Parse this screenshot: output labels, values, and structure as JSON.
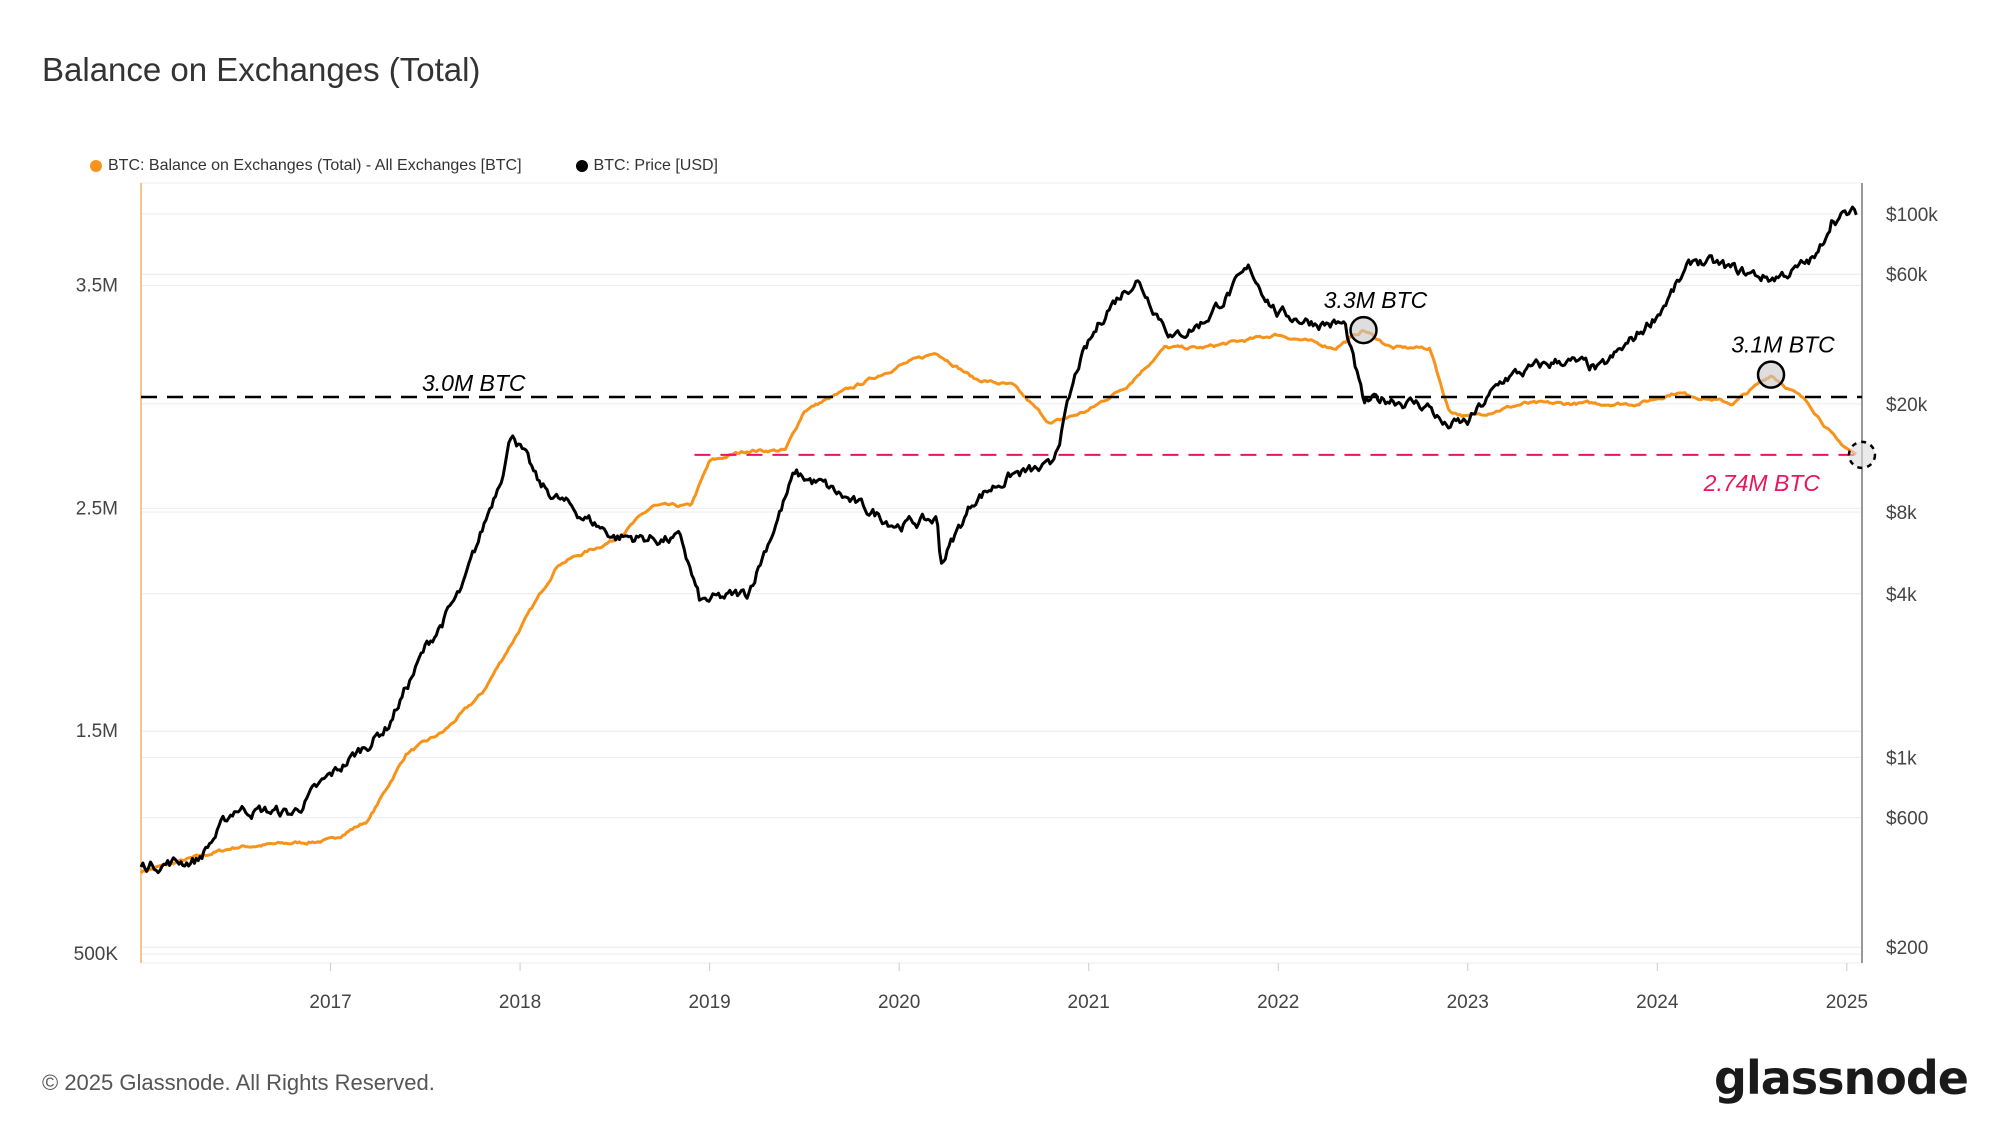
{
  "title": "Balance on Exchanges (Total)",
  "footer": "© 2025 Glassnode. All Rights Reserved.",
  "logo": "glassnode",
  "colors": {
    "balance": "#f7931a",
    "price": "#000000",
    "support": "#e8175d",
    "grid": "#ececec"
  },
  "chart_data": {
    "type": "line",
    "title": "Balance on Exchanges (Total)",
    "legend_position": "top-left",
    "grid": true,
    "x_ticks": [
      "2017",
      "2018",
      "2019",
      "2020",
      "2021",
      "2022",
      "2023",
      "2024",
      "2025"
    ],
    "xlim": [
      2016.0,
      2025.08
    ],
    "y_left": {
      "ticks": [
        "500K",
        "1.5M",
        "2.5M",
        "3.5M"
      ],
      "tick_values": [
        0.5,
        1.5,
        2.5,
        3.5
      ],
      "range": [
        0.46,
        3.96
      ],
      "unit": "M BTC"
    },
    "y_right": {
      "ticks": [
        "$200",
        "$600",
        "$1k",
        "$4k",
        "$8k",
        "$20k",
        "$60k",
        "$100k"
      ],
      "tick_values": [
        200,
        600,
        1000,
        4000,
        8000,
        20000,
        60000,
        100000
      ],
      "scale": "log",
      "range": [
        175,
        130000
      ]
    },
    "series": [
      {
        "name": "BTC: Balance on Exchanges (Total) - All Exchanges [BTC]",
        "axis": "left",
        "color": "#f7931a",
        "x": [
          2016.0,
          2016.5,
          2017.0,
          2017.2,
          2017.4,
          2017.6,
          2017.8,
          2018.0,
          2018.2,
          2018.5,
          2018.7,
          2018.9,
          2019.0,
          2019.2,
          2019.4,
          2019.5,
          2019.7,
          2020.0,
          2020.2,
          2020.4,
          2020.6,
          2020.8,
          2021.0,
          2021.2,
          2021.4,
          2021.6,
          2021.8,
          2022.0,
          2022.3,
          2022.45,
          2022.6,
          2022.8,
          2022.9,
          2023.0,
          2023.3,
          2023.6,
          2023.9,
          2024.1,
          2024.4,
          2024.6,
          2024.8,
          2024.95,
          2025.05
        ],
        "values": [
          0.87,
          0.98,
          1.01,
          1.1,
          1.4,
          1.5,
          1.67,
          1.96,
          2.25,
          2.36,
          2.51,
          2.51,
          2.71,
          2.76,
          2.76,
          2.94,
          3.02,
          3.14,
          3.2,
          3.08,
          3.05,
          2.88,
          2.94,
          3.05,
          3.22,
          3.22,
          3.25,
          3.28,
          3.22,
          3.3,
          3.22,
          3.22,
          2.94,
          2.91,
          2.97,
          2.97,
          2.97,
          3.02,
          2.97,
          3.1,
          2.97,
          2.8,
          2.74
        ]
      },
      {
        "name": "BTC: Price [USD]",
        "axis": "right",
        "color": "#000000",
        "x": [
          2016.0,
          2016.3,
          2016.5,
          2016.8,
          2017.0,
          2017.3,
          2017.5,
          2017.7,
          2017.9,
          2017.96,
          2018.1,
          2018.3,
          2018.5,
          2018.85,
          2018.95,
          2019.2,
          2019.45,
          2019.6,
          2019.8,
          2020.0,
          2020.2,
          2020.22,
          2020.4,
          2020.6,
          2020.8,
          2020.95,
          2021.1,
          2021.25,
          2021.45,
          2021.6,
          2021.85,
          2022.0,
          2022.2,
          2022.35,
          2022.45,
          2022.6,
          2022.8,
          2022.88,
          2023.0,
          2023.2,
          2023.5,
          2023.7,
          2023.9,
          2024.0,
          2024.2,
          2024.4,
          2024.6,
          2024.75,
          2024.85,
          2024.92,
          2025.05
        ],
        "values": [
          400,
          420,
          650,
          620,
          850,
          1300,
          2500,
          4200,
          11000,
          16000,
          10000,
          8000,
          6500,
          6300,
          3700,
          4000,
          11000,
          10000,
          8300,
          7200,
          7500,
          5200,
          9000,
          11000,
          11500,
          28000,
          45000,
          58000,
          35000,
          40000,
          62000,
          43000,
          40000,
          39000,
          20000,
          21000,
          19500,
          16500,
          17000,
          25000,
          29000,
          26500,
          36000,
          43000,
          68000,
          62000,
          58000,
          63000,
          70000,
          97000,
          100000
        ]
      }
    ],
    "annotations": [
      {
        "text": "3.0M BTC",
        "value": 3.0,
        "style": "dashed-black-line"
      },
      {
        "text": "2.74M BTC",
        "value": 2.74,
        "style": "dashed-pink-line"
      },
      {
        "text": "3.3M BTC",
        "x": 2022.45,
        "value": 3.3,
        "style": "circle"
      },
      {
        "text": "3.1M BTC",
        "x": 2024.6,
        "value": 3.1,
        "style": "circle"
      }
    ]
  }
}
